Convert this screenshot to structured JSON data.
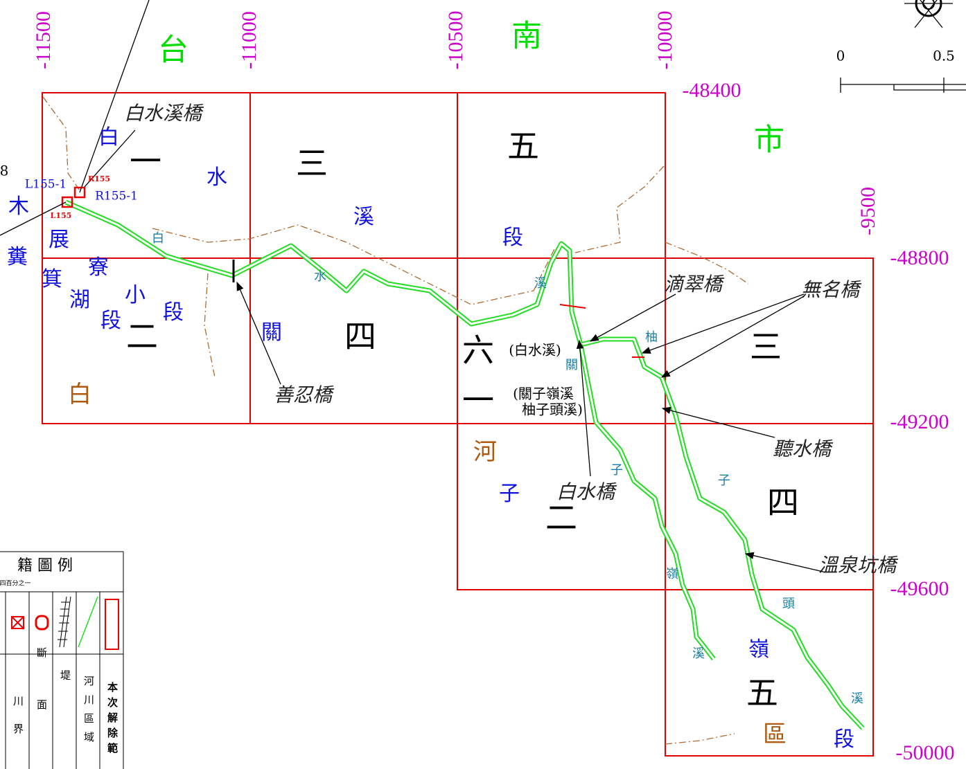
{
  "map": {
    "x_coords": [
      "-11500",
      "-11000",
      "-10500",
      "-10000",
      "-9500"
    ],
    "y_coords": [
      "-48400",
      "-48800",
      "-49200",
      "-49600",
      "-50000"
    ],
    "city": [
      "台",
      "南",
      "市"
    ],
    "sections": [
      "一",
      "三",
      "五",
      "四",
      "二",
      "六",
      "一",
      "三",
      "四",
      "二",
      "五"
    ],
    "section_notes": [
      "(白水溪)",
      "(關子嶺溪",
      "柚子頭溪)"
    ],
    "place_blue": [
      "白",
      "水",
      "溪",
      "段",
      "木",
      "展",
      "箕",
      "寮",
      "湖",
      "小",
      "段",
      "段",
      "糞",
      "子",
      "嶺",
      "段",
      "關"
    ],
    "place_brown": [
      "白",
      "河",
      "區"
    ],
    "bridges": [
      "白水溪橋",
      "善忍橋",
      "滴翠橋",
      "無名橋",
      "聽水橋",
      "白水橋",
      "溫泉坑橋"
    ],
    "streams": [
      "白",
      "水",
      "溪",
      "關",
      "柚",
      "子",
      "子",
      "嶺",
      "頭",
      "溪",
      "溪"
    ],
    "markers": [
      "L155-1",
      "R155-1",
      "L155",
      "R155",
      "8"
    ],
    "scale": [
      "0",
      "0.5"
    ],
    "legend": {
      "title": "籍 圖 例",
      "scale": "四百分之一",
      "columns": [
        "川界",
        "斷面",
        "堤",
        "河川區域",
        "本次解除範"
      ]
    }
  }
}
